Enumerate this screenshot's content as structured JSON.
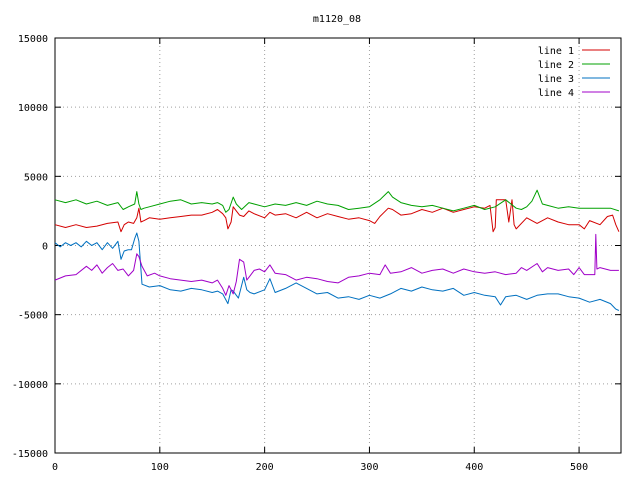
{
  "chart_data": {
    "type": "line",
    "title": "m1120_08",
    "xlabel": "",
    "ylabel": "",
    "xlim": [
      0,
      540
    ],
    "ylim": [
      -15000,
      15000
    ],
    "xticks": [
      0,
      100,
      200,
      300,
      400,
      500
    ],
    "yticks": [
      -15000,
      -10000,
      -5000,
      0,
      5000,
      10000,
      15000
    ],
    "grid": true,
    "legend_position": "top-right",
    "series": [
      {
        "name": "line 1",
        "color": "#d40000",
        "points": [
          [
            0,
            1500
          ],
          [
            10,
            1300
          ],
          [
            20,
            1500
          ],
          [
            30,
            1300
          ],
          [
            40,
            1400
          ],
          [
            50,
            1600
          ],
          [
            60,
            1700
          ],
          [
            63,
            1000
          ],
          [
            66,
            1500
          ],
          [
            70,
            1700
          ],
          [
            75,
            1600
          ],
          [
            78,
            2000
          ],
          [
            80,
            2700
          ],
          [
            82,
            1700
          ],
          [
            85,
            1800
          ],
          [
            90,
            2000
          ],
          [
            100,
            1900
          ],
          [
            110,
            2000
          ],
          [
            120,
            2100
          ],
          [
            130,
            2200
          ],
          [
            140,
            2200
          ],
          [
            150,
            2400
          ],
          [
            155,
            2600
          ],
          [
            160,
            2300
          ],
          [
            163,
            2000
          ],
          [
            165,
            1200
          ],
          [
            168,
            1700
          ],
          [
            170,
            2800
          ],
          [
            173,
            2500
          ],
          [
            176,
            2200
          ],
          [
            180,
            2100
          ],
          [
            185,
            2500
          ],
          [
            190,
            2300
          ],
          [
            200,
            2000
          ],
          [
            205,
            2400
          ],
          [
            210,
            2200
          ],
          [
            220,
            2300
          ],
          [
            230,
            2000
          ],
          [
            240,
            2400
          ],
          [
            250,
            2000
          ],
          [
            260,
            2300
          ],
          [
            270,
            2100
          ],
          [
            280,
            1900
          ],
          [
            290,
            2000
          ],
          [
            300,
            1800
          ],
          [
            305,
            1600
          ],
          [
            310,
            2100
          ],
          [
            318,
            2700
          ],
          [
            322,
            2600
          ],
          [
            330,
            2200
          ],
          [
            340,
            2300
          ],
          [
            350,
            2600
          ],
          [
            360,
            2400
          ],
          [
            370,
            2700
          ],
          [
            380,
            2400
          ],
          [
            390,
            2600
          ],
          [
            400,
            2800
          ],
          [
            410,
            2700
          ],
          [
            415,
            2900
          ],
          [
            418,
            1000
          ],
          [
            420,
            1300
          ],
          [
            421,
            3300
          ],
          [
            430,
            3300
          ],
          [
            433,
            1700
          ],
          [
            436,
            3300
          ],
          [
            438,
            1500
          ],
          [
            440,
            1200
          ],
          [
            450,
            2000
          ],
          [
            460,
            1600
          ],
          [
            470,
            2000
          ],
          [
            480,
            1700
          ],
          [
            490,
            1500
          ],
          [
            500,
            1500
          ],
          [
            505,
            1200
          ],
          [
            510,
            1800
          ],
          [
            520,
            1500
          ],
          [
            527,
            2100
          ],
          [
            532,
            2200
          ],
          [
            535,
            1500
          ],
          [
            538,
            1000
          ]
        ]
      },
      {
        "name": "line 2",
        "color": "#00a000",
        "points": [
          [
            0,
            3300
          ],
          [
            10,
            3100
          ],
          [
            20,
            3300
          ],
          [
            30,
            3000
          ],
          [
            40,
            3200
          ],
          [
            50,
            2900
          ],
          [
            60,
            3100
          ],
          [
            65,
            2600
          ],
          [
            70,
            2800
          ],
          [
            76,
            3000
          ],
          [
            78,
            3900
          ],
          [
            80,
            3000
          ],
          [
            82,
            2600
          ],
          [
            85,
            2700
          ],
          [
            90,
            2800
          ],
          [
            100,
            3000
          ],
          [
            110,
            3200
          ],
          [
            120,
            3300
          ],
          [
            130,
            3000
          ],
          [
            140,
            3100
          ],
          [
            150,
            3000
          ],
          [
            155,
            3100
          ],
          [
            160,
            2900
          ],
          [
            163,
            2400
          ],
          [
            166,
            2600
          ],
          [
            170,
            3500
          ],
          [
            173,
            3000
          ],
          [
            178,
            2600
          ],
          [
            185,
            3100
          ],
          [
            190,
            3000
          ],
          [
            200,
            2800
          ],
          [
            210,
            3000
          ],
          [
            220,
            2900
          ],
          [
            230,
            3100
          ],
          [
            240,
            2900
          ],
          [
            250,
            3200
          ],
          [
            260,
            3000
          ],
          [
            270,
            2900
          ],
          [
            280,
            2600
          ],
          [
            290,
            2700
          ],
          [
            300,
            2800
          ],
          [
            310,
            3300
          ],
          [
            318,
            3900
          ],
          [
            322,
            3500
          ],
          [
            330,
            3100
          ],
          [
            340,
            2900
          ],
          [
            350,
            2800
          ],
          [
            360,
            2900
          ],
          [
            370,
            2700
          ],
          [
            380,
            2500
          ],
          [
            390,
            2700
          ],
          [
            400,
            2900
          ],
          [
            410,
            2600
          ],
          [
            420,
            2800
          ],
          [
            430,
            3300
          ],
          [
            440,
            2700
          ],
          [
            445,
            2600
          ],
          [
            450,
            2800
          ],
          [
            455,
            3200
          ],
          [
            460,
            4000
          ],
          [
            465,
            3000
          ],
          [
            470,
            2900
          ],
          [
            480,
            2700
          ],
          [
            490,
            2800
          ],
          [
            500,
            2700
          ],
          [
            510,
            2700
          ],
          [
            520,
            2700
          ],
          [
            530,
            2700
          ],
          [
            538,
            2500
          ]
        ]
      },
      {
        "name": "line 3",
        "color": "#0070c0",
        "points": [
          [
            0,
            200
          ],
          [
            5,
            -100
          ],
          [
            10,
            200
          ],
          [
            15,
            0
          ],
          [
            20,
            200
          ],
          [
            25,
            -100
          ],
          [
            30,
            300
          ],
          [
            35,
            0
          ],
          [
            40,
            200
          ],
          [
            45,
            -300
          ],
          [
            50,
            200
          ],
          [
            55,
            -200
          ],
          [
            60,
            300
          ],
          [
            63,
            -1000
          ],
          [
            66,
            -400
          ],
          [
            70,
            -300
          ],
          [
            73,
            -300
          ],
          [
            76,
            500
          ],
          [
            78,
            900
          ],
          [
            80,
            300
          ],
          [
            83,
            -2800
          ],
          [
            90,
            -3000
          ],
          [
            100,
            -2900
          ],
          [
            110,
            -3200
          ],
          [
            120,
            -3300
          ],
          [
            130,
            -3100
          ],
          [
            140,
            -3200
          ],
          [
            150,
            -3400
          ],
          [
            155,
            -3300
          ],
          [
            160,
            -3500
          ],
          [
            165,
            -4200
          ],
          [
            168,
            -3200
          ],
          [
            170,
            -3300
          ],
          [
            175,
            -3800
          ],
          [
            180,
            -2300
          ],
          [
            183,
            -3200
          ],
          [
            186,
            -3400
          ],
          [
            190,
            -3500
          ],
          [
            200,
            -3200
          ],
          [
            205,
            -2400
          ],
          [
            210,
            -3400
          ],
          [
            220,
            -3100
          ],
          [
            230,
            -2700
          ],
          [
            240,
            -3100
          ],
          [
            250,
            -3500
          ],
          [
            260,
            -3400
          ],
          [
            270,
            -3800
          ],
          [
            280,
            -3700
          ],
          [
            290,
            -3900
          ],
          [
            300,
            -3600
          ],
          [
            310,
            -3800
          ],
          [
            320,
            -3500
          ],
          [
            330,
            -3100
          ],
          [
            340,
            -3300
          ],
          [
            350,
            -3000
          ],
          [
            360,
            -3200
          ],
          [
            370,
            -3300
          ],
          [
            380,
            -3100
          ],
          [
            390,
            -3600
          ],
          [
            400,
            -3400
          ],
          [
            410,
            -3600
          ],
          [
            420,
            -3700
          ],
          [
            425,
            -4300
          ],
          [
            430,
            -3700
          ],
          [
            440,
            -3600
          ],
          [
            450,
            -3900
          ],
          [
            460,
            -3600
          ],
          [
            470,
            -3500
          ],
          [
            480,
            -3500
          ],
          [
            490,
            -3700
          ],
          [
            500,
            -3800
          ],
          [
            510,
            -4100
          ],
          [
            520,
            -3900
          ],
          [
            530,
            -4200
          ],
          [
            535,
            -4600
          ],
          [
            538,
            -4700
          ]
        ]
      },
      {
        "name": "line 4",
        "color": "#a000c8",
        "points": [
          [
            0,
            -2500
          ],
          [
            10,
            -2200
          ],
          [
            20,
            -2100
          ],
          [
            30,
            -1500
          ],
          [
            35,
            -1800
          ],
          [
            40,
            -1400
          ],
          [
            45,
            -2000
          ],
          [
            50,
            -1600
          ],
          [
            55,
            -1300
          ],
          [
            60,
            -1800
          ],
          [
            65,
            -1700
          ],
          [
            70,
            -2200
          ],
          [
            75,
            -1800
          ],
          [
            78,
            -600
          ],
          [
            80,
            -800
          ],
          [
            83,
            -1500
          ],
          [
            88,
            -2200
          ],
          [
            95,
            -2000
          ],
          [
            100,
            -2200
          ],
          [
            110,
            -2400
          ],
          [
            120,
            -2500
          ],
          [
            130,
            -2600
          ],
          [
            140,
            -2500
          ],
          [
            150,
            -2700
          ],
          [
            155,
            -2500
          ],
          [
            160,
            -3100
          ],
          [
            163,
            -3600
          ],
          [
            166,
            -2900
          ],
          [
            170,
            -3500
          ],
          [
            173,
            -2600
          ],
          [
            176,
            -1000
          ],
          [
            180,
            -1200
          ],
          [
            183,
            -2500
          ],
          [
            186,
            -2200
          ],
          [
            190,
            -1800
          ],
          [
            195,
            -1700
          ],
          [
            200,
            -1900
          ],
          [
            205,
            -1400
          ],
          [
            210,
            -2000
          ],
          [
            220,
            -2100
          ],
          [
            230,
            -2500
          ],
          [
            240,
            -2300
          ],
          [
            250,
            -2400
          ],
          [
            260,
            -2600
          ],
          [
            270,
            -2700
          ],
          [
            280,
            -2300
          ],
          [
            290,
            -2200
          ],
          [
            300,
            -2000
          ],
          [
            310,
            -2100
          ],
          [
            315,
            -1400
          ],
          [
            320,
            -2000
          ],
          [
            330,
            -1900
          ],
          [
            340,
            -1600
          ],
          [
            350,
            -2000
          ],
          [
            360,
            -1800
          ],
          [
            370,
            -1700
          ],
          [
            380,
            -2000
          ],
          [
            390,
            -1700
          ],
          [
            400,
            -1900
          ],
          [
            410,
            -2000
          ],
          [
            420,
            -1900
          ],
          [
            430,
            -2100
          ],
          [
            440,
            -2000
          ],
          [
            445,
            -1600
          ],
          [
            450,
            -1800
          ],
          [
            460,
            -1300
          ],
          [
            465,
            -1900
          ],
          [
            470,
            -1600
          ],
          [
            480,
            -1800
          ],
          [
            490,
            -1700
          ],
          [
            495,
            -2100
          ],
          [
            500,
            -1600
          ],
          [
            505,
            -2100
          ],
          [
            515,
            -2100
          ],
          [
            516,
            800
          ],
          [
            517,
            -1700
          ],
          [
            520,
            -1600
          ],
          [
            530,
            -1800
          ],
          [
            538,
            -1800
          ]
        ]
      }
    ]
  }
}
